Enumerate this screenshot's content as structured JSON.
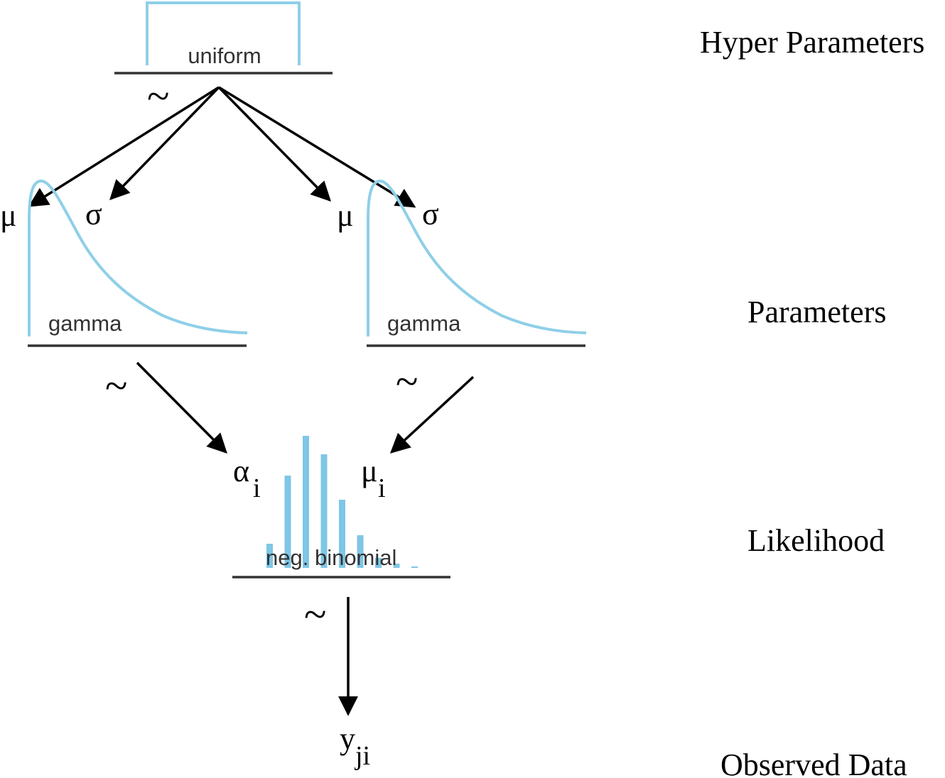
{
  "levels": {
    "hyper": "Hyper Parameters",
    "params": "Parameters",
    "likelihood": "Likelihood",
    "observed": "Observed Data"
  },
  "distributions": {
    "uniform": "uniform",
    "gamma_left": "gamma",
    "gamma_right": "gamma",
    "negbin": "neg. binomial"
  },
  "symbols": {
    "mu": "μ",
    "sigma": "σ",
    "alpha": "α",
    "sub_i": "i",
    "y": "y",
    "sub_ji": "ji",
    "tilde": "~"
  },
  "negbin_bar_heights": [
    0.17,
    0.65,
    0.93,
    0.8,
    0.48,
    0.23,
    0.07,
    0.03,
    0.01
  ],
  "colors": {
    "curve": "#8fcfe8",
    "bars": "#7fc6e6",
    "arrows": "#000000",
    "baselines": "#333333"
  }
}
